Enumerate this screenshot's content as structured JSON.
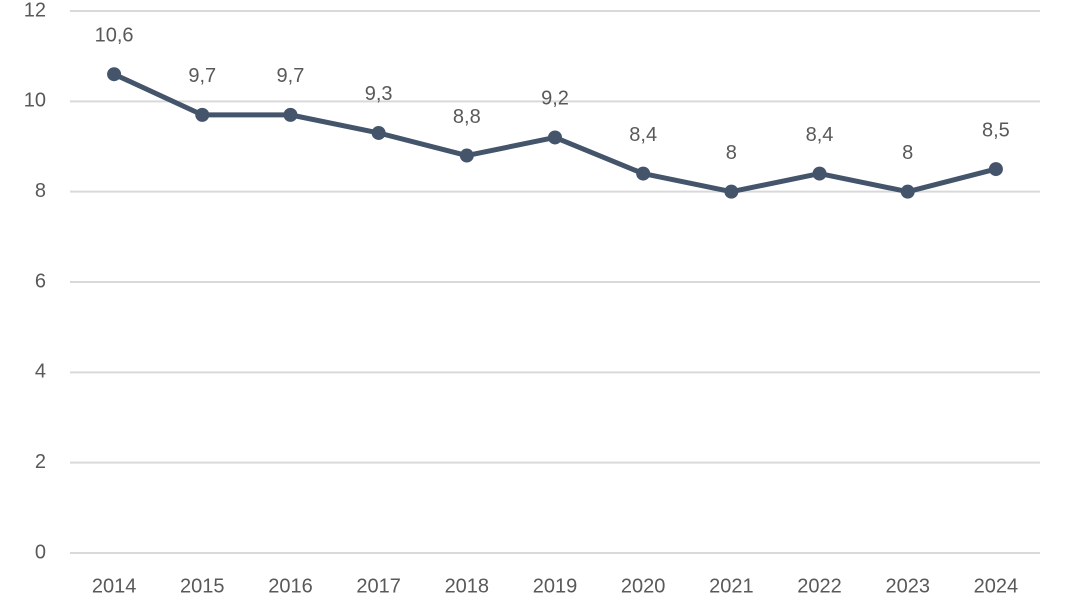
{
  "chart_data": {
    "type": "line",
    "categories": [
      "2014",
      "2015",
      "2016",
      "2017",
      "2018",
      "2019",
      "2020",
      "2021",
      "2022",
      "2023",
      "2024"
    ],
    "values": [
      10.6,
      9.7,
      9.7,
      9.3,
      8.8,
      9.2,
      8.4,
      8,
      8.4,
      8,
      8.5
    ],
    "value_labels": [
      "10,6",
      "9,7",
      "9,7",
      "9,3",
      "8,8",
      "9,2",
      "8,4",
      "8",
      "8,4",
      "8",
      "8,5"
    ],
    "color": "#44546a",
    "ylim": [
      0,
      12
    ],
    "yticks": [
      0,
      2,
      4,
      6,
      8,
      10,
      12
    ],
    "grid": true
  }
}
